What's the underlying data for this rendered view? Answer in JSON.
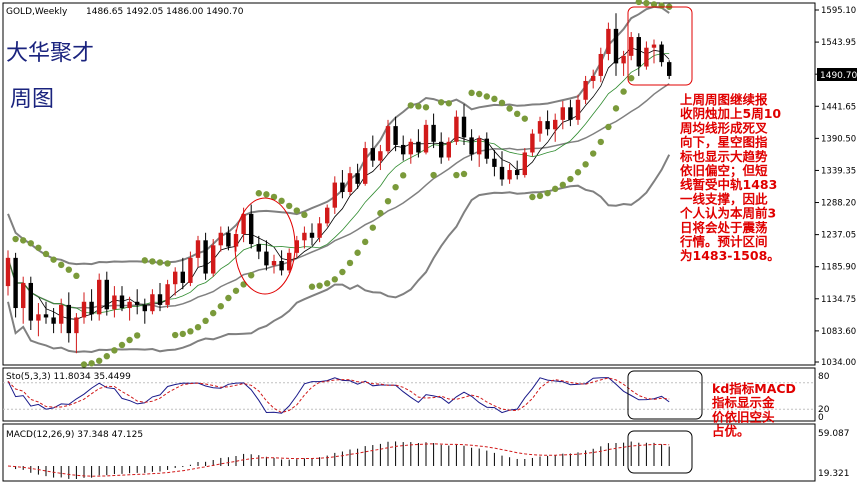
{
  "header": {
    "symbol": "GOLD,Weekly",
    "ohlc": "1486.65 1492.05 1486.00 1490.70"
  },
  "overlay_titles": [
    "大华聚才",
    "周图"
  ],
  "annotation_main": [
    "上周周图继续报",
    "收阴烛加上5周10",
    "周均线形成死叉",
    "向下，星空图指",
    "标也显示大趋势",
    "依旧偏空；但短",
    "线暂受中轨1483",
    "一线支撑，因此",
    "个人认为本周前3",
    "日将会处于震荡",
    "行情。预计区间",
    "为1483-1508。"
  ],
  "annotation_indicator": [
    "kd指标MACD",
    "指标显示金",
    "价依旧空头",
    "占优。"
  ],
  "colors": {
    "bull": "#d11a1a",
    "bear": "#000000",
    "sar": "#7a9a3a",
    "bollinger": "#808080",
    "ma_fast": "#000000",
    "ma_slow": "#2e8b2e",
    "annotation": "#e00000",
    "title": "#1a237e",
    "price_box": "#000000"
  },
  "chart_data": {
    "type": "candlestick",
    "price_axis": {
      "ticks": [
        "1595.10",
        "1543.95",
        "1492.80",
        "1441.65",
        "1390.50",
        "1339.35",
        "1288.20",
        "1237.05",
        "1185.90",
        "1134.75",
        "1083.60",
        "1034.00"
      ],
      "min": 1034.0,
      "max": 1595.1,
      "current_label": "1490.70"
    },
    "candles": [
      {
        "o": 1155,
        "h": 1212,
        "l": 1140,
        "c": 1200
      },
      {
        "o": 1200,
        "h": 1208,
        "l": 1105,
        "c": 1120
      },
      {
        "o": 1120,
        "h": 1170,
        "l": 1095,
        "c": 1160
      },
      {
        "o": 1160,
        "h": 1170,
        "l": 1085,
        "c": 1100
      },
      {
        "o": 1100,
        "h": 1128,
        "l": 1075,
        "c": 1110
      },
      {
        "o": 1110,
        "h": 1130,
        "l": 1095,
        "c": 1105
      },
      {
        "o": 1105,
        "h": 1120,
        "l": 1080,
        "c": 1095
      },
      {
        "o": 1095,
        "h": 1135,
        "l": 1080,
        "c": 1125
      },
      {
        "o": 1125,
        "h": 1145,
        "l": 1065,
        "c": 1080
      },
      {
        "o": 1080,
        "h": 1112,
        "l": 1048,
        "c": 1105
      },
      {
        "o": 1105,
        "h": 1145,
        "l": 1095,
        "c": 1130
      },
      {
        "o": 1130,
        "h": 1150,
        "l": 1100,
        "c": 1110
      },
      {
        "o": 1110,
        "h": 1175,
        "l": 1100,
        "c": 1165
      },
      {
        "o": 1165,
        "h": 1178,
        "l": 1108,
        "c": 1118
      },
      {
        "o": 1118,
        "h": 1155,
        "l": 1105,
        "c": 1140
      },
      {
        "o": 1140,
        "h": 1155,
        "l": 1115,
        "c": 1120
      },
      {
        "o": 1120,
        "h": 1138,
        "l": 1100,
        "c": 1130
      },
      {
        "o": 1130,
        "h": 1150,
        "l": 1110,
        "c": 1125
      },
      {
        "o": 1125,
        "h": 1135,
        "l": 1095,
        "c": 1115
      },
      {
        "o": 1115,
        "h": 1150,
        "l": 1110,
        "c": 1142
      },
      {
        "o": 1142,
        "h": 1160,
        "l": 1115,
        "c": 1125
      },
      {
        "o": 1125,
        "h": 1165,
        "l": 1120,
        "c": 1158
      },
      {
        "o": 1158,
        "h": 1185,
        "l": 1140,
        "c": 1178
      },
      {
        "o": 1178,
        "h": 1200,
        "l": 1150,
        "c": 1160
      },
      {
        "o": 1160,
        "h": 1210,
        "l": 1155,
        "c": 1200
      },
      {
        "o": 1200,
        "h": 1235,
        "l": 1185,
        "c": 1228
      },
      {
        "o": 1228,
        "h": 1240,
        "l": 1165,
        "c": 1175
      },
      {
        "o": 1175,
        "h": 1230,
        "l": 1170,
        "c": 1220
      },
      {
        "o": 1220,
        "h": 1250,
        "l": 1210,
        "c": 1240
      },
      {
        "o": 1240,
        "h": 1250,
        "l": 1212,
        "c": 1218
      },
      {
        "o": 1218,
        "h": 1245,
        "l": 1210,
        "c": 1238
      },
      {
        "o": 1238,
        "h": 1280,
        "l": 1225,
        "c": 1270
      },
      {
        "o": 1270,
        "h": 1285,
        "l": 1215,
        "c": 1222
      },
      {
        "o": 1222,
        "h": 1235,
        "l": 1198,
        "c": 1210
      },
      {
        "o": 1210,
        "h": 1228,
        "l": 1180,
        "c": 1188
      },
      {
        "o": 1188,
        "h": 1205,
        "l": 1175,
        "c": 1195
      },
      {
        "o": 1195,
        "h": 1212,
        "l": 1172,
        "c": 1180
      },
      {
        "o": 1180,
        "h": 1215,
        "l": 1176,
        "c": 1208
      },
      {
        "o": 1208,
        "h": 1235,
        "l": 1200,
        "c": 1228
      },
      {
        "o": 1228,
        "h": 1250,
        "l": 1215,
        "c": 1240
      },
      {
        "o": 1240,
        "h": 1255,
        "l": 1220,
        "c": 1232
      },
      {
        "o": 1232,
        "h": 1265,
        "l": 1225,
        "c": 1255
      },
      {
        "o": 1255,
        "h": 1285,
        "l": 1250,
        "c": 1280
      },
      {
        "o": 1280,
        "h": 1330,
        "l": 1270,
        "c": 1320
      },
      {
        "o": 1320,
        "h": 1340,
        "l": 1295,
        "c": 1305
      },
      {
        "o": 1305,
        "h": 1345,
        "l": 1300,
        "c": 1335
      },
      {
        "o": 1335,
        "h": 1350,
        "l": 1310,
        "c": 1318
      },
      {
        "o": 1318,
        "h": 1385,
        "l": 1315,
        "c": 1375
      },
      {
        "o": 1375,
        "h": 1395,
        "l": 1345,
        "c": 1355
      },
      {
        "o": 1355,
        "h": 1380,
        "l": 1340,
        "c": 1370
      },
      {
        "o": 1370,
        "h": 1420,
        "l": 1365,
        "c": 1410
      },
      {
        "o": 1410,
        "h": 1425,
        "l": 1370,
        "c": 1380
      },
      {
        "o": 1380,
        "h": 1395,
        "l": 1355,
        "c": 1365
      },
      {
        "o": 1365,
        "h": 1390,
        "l": 1350,
        "c": 1385
      },
      {
        "o": 1385,
        "h": 1405,
        "l": 1360,
        "c": 1368
      },
      {
        "o": 1368,
        "h": 1420,
        "l": 1365,
        "c": 1412
      },
      {
        "o": 1412,
        "h": 1430,
        "l": 1375,
        "c": 1385
      },
      {
        "o": 1385,
        "h": 1400,
        "l": 1350,
        "c": 1360
      },
      {
        "o": 1360,
        "h": 1392,
        "l": 1355,
        "c": 1385
      },
      {
        "o": 1385,
        "h": 1435,
        "l": 1380,
        "c": 1425
      },
      {
        "o": 1425,
        "h": 1445,
        "l": 1380,
        "c": 1392
      },
      {
        "o": 1392,
        "h": 1405,
        "l": 1355,
        "c": 1365
      },
      {
        "o": 1365,
        "h": 1395,
        "l": 1345,
        "c": 1390
      },
      {
        "o": 1390,
        "h": 1400,
        "l": 1350,
        "c": 1358
      },
      {
        "o": 1358,
        "h": 1372,
        "l": 1330,
        "c": 1345
      },
      {
        "o": 1345,
        "h": 1370,
        "l": 1315,
        "c": 1325
      },
      {
        "o": 1325,
        "h": 1350,
        "l": 1318,
        "c": 1340
      },
      {
        "o": 1340,
        "h": 1355,
        "l": 1325,
        "c": 1332
      },
      {
        "o": 1332,
        "h": 1375,
        "l": 1328,
        "c": 1368
      },
      {
        "o": 1368,
        "h": 1405,
        "l": 1362,
        "c": 1398
      },
      {
        "o": 1398,
        "h": 1425,
        "l": 1385,
        "c": 1418
      },
      {
        "o": 1418,
        "h": 1435,
        "l": 1395,
        "c": 1405
      },
      {
        "o": 1405,
        "h": 1430,
        "l": 1385,
        "c": 1420
      },
      {
        "o": 1420,
        "h": 1450,
        "l": 1405,
        "c": 1440
      },
      {
        "o": 1440,
        "h": 1452,
        "l": 1410,
        "c": 1420
      },
      {
        "o": 1420,
        "h": 1460,
        "l": 1412,
        "c": 1452
      },
      {
        "o": 1452,
        "h": 1490,
        "l": 1445,
        "c": 1482
      },
      {
        "o": 1482,
        "h": 1500,
        "l": 1470,
        "c": 1490
      },
      {
        "o": 1490,
        "h": 1535,
        "l": 1480,
        "c": 1525
      },
      {
        "o": 1525,
        "h": 1575,
        "l": 1515,
        "c": 1565
      },
      {
        "o": 1565,
        "h": 1590,
        "l": 1490,
        "c": 1510
      },
      {
        "o": 1510,
        "h": 1530,
        "l": 1490,
        "c": 1522
      },
      {
        "o": 1522,
        "h": 1560,
        "l": 1515,
        "c": 1552
      },
      {
        "o": 1552,
        "h": 1558,
        "l": 1490,
        "c": 1505
      },
      {
        "o": 1505,
        "h": 1545,
        "l": 1500,
        "c": 1535
      },
      {
        "o": 1535,
        "h": 1548,
        "l": 1510,
        "c": 1540
      },
      {
        "o": 1540,
        "h": 1545,
        "l": 1505,
        "c": 1512
      },
      {
        "o": 1512,
        "h": 1515,
        "l": 1485,
        "c": 1490
      }
    ],
    "stochastic": {
      "label": "Sto(5,3,3) 11.8034 35.4499",
      "levels": [
        "80",
        "20",
        "0"
      ],
      "min": 0,
      "max": 100
    },
    "macd": {
      "label": "MACD(12,26,9) 37.348 47.125",
      "ticks": [
        "59.087",
        "19.321"
      ]
    }
  }
}
